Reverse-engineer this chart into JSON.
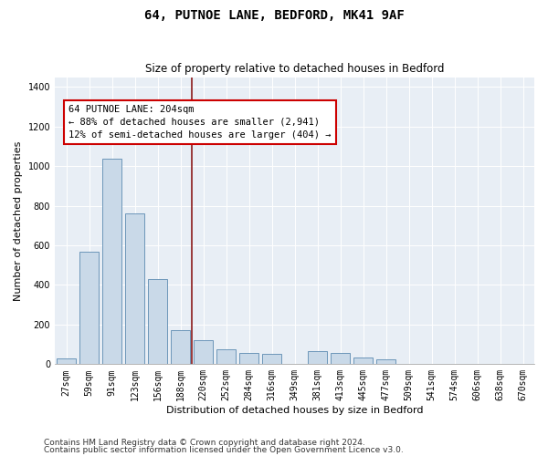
{
  "title": "64, PUTNOE LANE, BEDFORD, MK41 9AF",
  "subtitle": "Size of property relative to detached houses in Bedford",
  "xlabel": "Distribution of detached houses by size in Bedford",
  "ylabel": "Number of detached properties",
  "footnote1": "Contains HM Land Registry data © Crown copyright and database right 2024.",
  "footnote2": "Contains public sector information licensed under the Open Government Licence v3.0.",
  "annotation_line1": "64 PUTNOE LANE: 204sqm",
  "annotation_line2": "← 88% of detached houses are smaller (2,941)",
  "annotation_line3": "12% of semi-detached houses are larger (404) →",
  "bar_color": "#c9d9e8",
  "bar_edge_color": "#5b8ab0",
  "vline_color": "#8b1a1a",
  "bg_color": "#e8eef5",
  "categories": [
    "27sqm",
    "59sqm",
    "91sqm",
    "123sqm",
    "156sqm",
    "188sqm",
    "220sqm",
    "252sqm",
    "284sqm",
    "316sqm",
    "349sqm",
    "381sqm",
    "413sqm",
    "445sqm",
    "477sqm",
    "509sqm",
    "541sqm",
    "574sqm",
    "606sqm",
    "638sqm",
    "670sqm"
  ],
  "values": [
    30,
    570,
    1040,
    760,
    430,
    170,
    120,
    75,
    55,
    50,
    0,
    65,
    55,
    35,
    25,
    0,
    0,
    0,
    0,
    0,
    0
  ],
  "ylim": [
    0,
    1450
  ],
  "yticks": [
    0,
    200,
    400,
    600,
    800,
    1000,
    1200,
    1400
  ],
  "vline_x": 5.5,
  "title_fontsize": 10,
  "subtitle_fontsize": 8.5,
  "axis_label_fontsize": 8,
  "tick_fontsize": 7,
  "annotation_fontsize": 7.5,
  "footnote_fontsize": 6.5
}
